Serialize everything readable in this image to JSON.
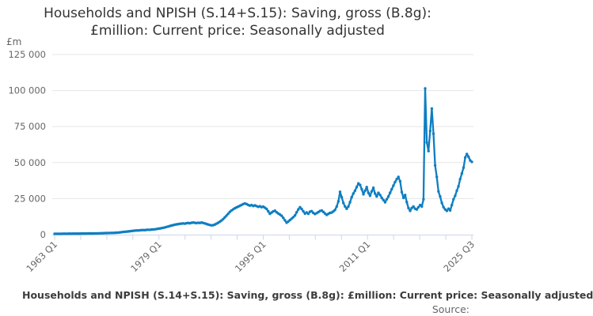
{
  "header": {
    "title_line1": "Households and NPISH (S.14+S.15): Saving, gross (B.8g):",
    "title_line2": "£million: Current price: Seasonally adjusted",
    "unit_label": "£m"
  },
  "footer": {
    "caption": "Households and NPISH (S.14+S.15): Saving, gross (B.8g): £million: Current price: Seasonally adjusted",
    "source_label": "Source:"
  },
  "chart_data": {
    "type": "line",
    "title": "Households and NPISH (S.14+S.15): Saving, gross (B.8g): £million: Current price: Seasonally adjusted",
    "ylabel": "£m",
    "ylim": [
      0,
      125000
    ],
    "y_ticks": [
      0,
      25000,
      50000,
      75000,
      100000,
      125000
    ],
    "y_tick_labels": [
      "0",
      "25 000",
      "50 000",
      "75 000",
      "100 000",
      "125 000"
    ],
    "x_range": [
      "1963 Q1",
      "2025 Q3"
    ],
    "frequency": "quarterly",
    "x_tick_count": 17,
    "x_label_every": 4,
    "x_tick_labels": [
      "1963 Q1",
      "1979 Q1",
      "1995 Q1",
      "2011 Q1",
      "2025 Q3"
    ],
    "grid": "horizontal",
    "legend": "none",
    "colors": {
      "line": "#0e7ec2",
      "grid": "#e6e6e6",
      "axis": "#ccd6eb",
      "tick_label": "#666666",
      "title": "#333333"
    },
    "series": [
      {
        "name": "Saving, gross (B.8g)",
        "color": "#0e7ec2",
        "values": [
          600,
          610,
          590,
          620,
          630,
          650,
          640,
          660,
          670,
          690,
          680,
          700,
          710,
          730,
          720,
          740,
          750,
          770,
          760,
          780,
          800,
          820,
          810,
          840,
          860,
          880,
          900,
          930,
          960,
          1000,
          1040,
          1080,
          1120,
          1160,
          1200,
          1180,
          1250,
          1350,
          1450,
          1550,
          1700,
          1850,
          2000,
          2100,
          2200,
          2350,
          2500,
          2650,
          2800,
          2900,
          2850,
          3000,
          3100,
          3200,
          3150,
          3300,
          3400,
          3350,
          3500,
          3600,
          3700,
          3900,
          4100,
          4300,
          4500,
          4700,
          5000,
          5300,
          5600,
          6000,
          6300,
          6600,
          6900,
          7100,
          7300,
          7500,
          7600,
          7800,
          7600,
          7900,
          8100,
          7900,
          8200,
          8400,
          8200,
          8000,
          8300,
          8100,
          8400,
          8100,
          7800,
          7400,
          7000,
          6700,
          6400,
          6600,
          7000,
          7600,
          8200,
          9000,
          9800,
          10800,
          12000,
          13200,
          14500,
          15800,
          16800,
          17600,
          18300,
          18900,
          19400,
          20000,
          20600,
          21200,
          21600,
          21200,
          20600,
          20100,
          20500,
          19900,
          20300,
          19800,
          19300,
          19700,
          19100,
          19400,
          18700,
          17900,
          16200,
          14500,
          15300,
          16100,
          16600,
          15500,
          14700,
          13900,
          13100,
          11600,
          9900,
          8300,
          9100,
          10100,
          11100,
          12100,
          13300,
          15500,
          17500,
          19000,
          17800,
          16200,
          14600,
          15400,
          14500,
          15900,
          16300,
          15100,
          14300,
          14900,
          15600,
          16400,
          16700,
          15800,
          14700,
          13700,
          14400,
          15100,
          15300,
          16100,
          17100,
          19500,
          23000,
          29700,
          26000,
          22000,
          19500,
          18000,
          19500,
          22500,
          26000,
          28500,
          30500,
          33000,
          35500,
          34500,
          31500,
          28000,
          30500,
          33000,
          29000,
          27000,
          30000,
          32500,
          28500,
          26500,
          29000,
          27500,
          25500,
          24000,
          22500,
          24500,
          26500,
          29000,
          31500,
          34000,
          36500,
          38500,
          40000,
          37000,
          29500,
          25500,
          27500,
          22500,
          18500,
          16500,
          18500,
          19500,
          18000,
          17500,
          19000,
          20500,
          19500,
          24500,
          101500,
          64000,
          58000,
          72000,
          87500,
          70000,
          48000,
          40000,
          30000,
          26500,
          22000,
          19000,
          17500,
          16500,
          18000,
          16800,
          20500,
          24500,
          27000,
          30500,
          33500,
          38500,
          42500,
          46500,
          53500,
          56000,
          54000,
          51500,
          50500
        ]
      }
    ]
  }
}
